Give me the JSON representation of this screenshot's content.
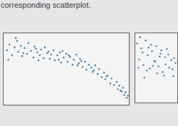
{
  "chart_data": [
    {
      "type": "scatter",
      "title": "corresponding scatterplot.",
      "color": "#4f86a8",
      "tick_labels": false,
      "xlim": [
        0,
        10
      ],
      "ylim": [
        0,
        10
      ],
      "x": [
        0.3,
        0.5,
        0.7,
        0.9,
        1.0,
        1.2,
        1.4,
        1.5,
        1.7,
        1.9,
        2.0,
        2.2,
        2.4,
        2.5,
        2.7,
        2.9,
        3.0,
        3.2,
        3.3,
        3.5,
        3.7,
        3.8,
        4.0,
        4.1,
        4.3,
        4.5,
        4.6,
        4.8,
        5.0,
        5.1,
        5.3,
        5.5,
        5.6,
        5.8,
        6.0,
        6.1,
        6.3,
        6.5,
        6.6,
        6.8,
        7.0,
        7.1,
        7.3,
        7.5,
        7.6,
        7.8,
        8.0,
        8.1,
        8.3,
        8.5,
        8.6,
        8.8,
        9.0,
        9.1,
        9.2,
        9.4,
        9.5,
        9.6,
        9.7,
        9.8,
        9.9,
        1.1,
        2.6,
        3.6,
        4.4,
        5.2,
        6.2,
        7.2,
        8.2,
        9.3,
        0.4,
        1.6,
        2.8,
        4.7,
        5.9
      ],
      "values": [
        7.6,
        8.4,
        6.9,
        8.0,
        9.3,
        7.4,
        8.2,
        6.8,
        7.9,
        7.1,
        8.6,
        7.5,
        6.6,
        8.1,
        7.3,
        6.9,
        7.7,
        6.5,
        8.0,
        7.2,
        6.4,
        7.0,
        7.6,
        6.2,
        6.9,
        7.3,
        5.9,
        6.6,
        7.1,
        6.0,
        6.7,
        5.6,
        6.3,
        7.0,
        5.8,
        6.4,
        5.3,
        6.0,
        4.9,
        5.6,
        5.2,
        4.6,
        5.5,
        4.3,
        5.0,
        3.9,
        4.5,
        3.6,
        4.1,
        3.0,
        3.7,
        2.8,
        3.2,
        2.2,
        2.7,
        1.9,
        2.4,
        1.4,
        1.8,
        1.0,
        1.3,
        8.9,
        7.8,
        7.4,
        6.3,
        6.9,
        6.1,
        4.8,
        4.0,
        2.0,
        6.3,
        7.2,
        6.2,
        7.5,
        5.5
      ]
    },
    {
      "type": "scatter",
      "color": "#4f86a8",
      "tick_labels": false,
      "xlim": [
        0,
        10
      ],
      "ylim": [
        0,
        10
      ],
      "x": [
        0.5,
        1.0,
        1.5,
        2.0,
        2.5,
        3.0,
        3.5,
        4.0,
        4.5,
        5.0,
        5.5,
        6.0,
        6.5,
        7.0,
        7.5,
        8.0,
        8.5,
        9.0,
        9.5,
        0.8,
        1.8,
        2.8,
        3.8,
        4.8,
        5.8,
        6.8,
        7.8,
        8.8,
        1.2,
        3.2,
        5.2,
        7.2,
        9.2,
        2.2,
        4.2,
        6.2
      ],
      "values": [
        8.5,
        6.2,
        7.8,
        5.4,
        8.9,
        6.8,
        4.9,
        7.4,
        6.0,
        8.1,
        5.2,
        7.0,
        4.4,
        6.5,
        7.7,
        5.0,
        6.1,
        3.8,
        5.7,
        5.0,
        7.2,
        4.6,
        8.3,
        5.9,
        6.6,
        3.9,
        6.9,
        4.8,
        9.4,
        7.9,
        4.2,
        5.5,
        6.4,
        3.6,
        5.3,
        7.5
      ]
    }
  ]
}
